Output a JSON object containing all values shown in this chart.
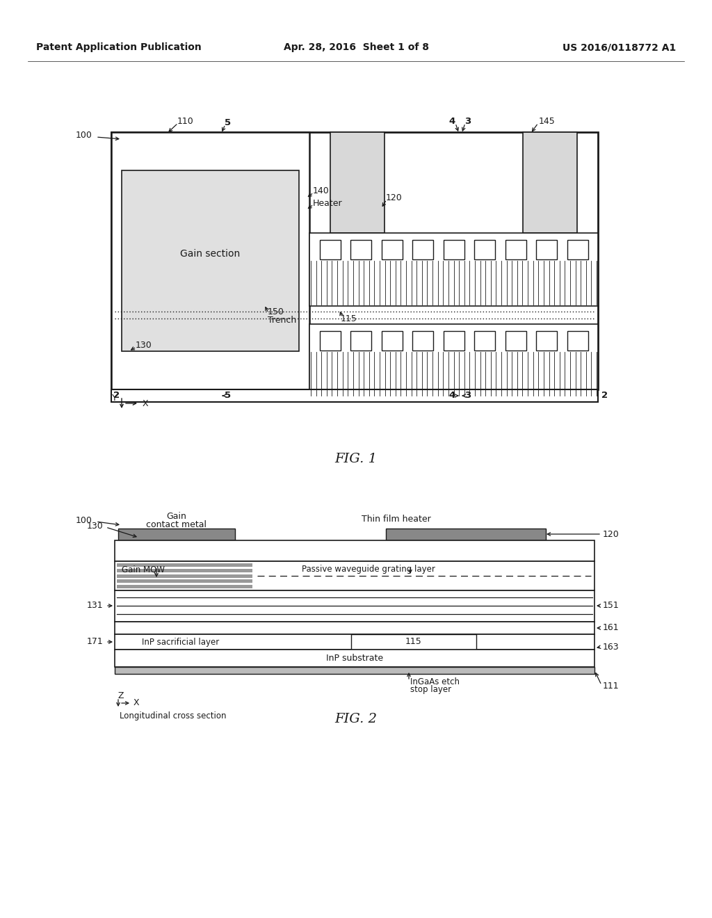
{
  "bg_color": "#ffffff",
  "header_left": "Patent Application Publication",
  "header_center": "Apr. 28, 2016  Sheet 1 of 8",
  "header_right": "US 2016/0118772 A1",
  "fig1_label": "FIG. 1",
  "fig2_label": "FIG. 2",
  "lc": "#1a1a1a"
}
